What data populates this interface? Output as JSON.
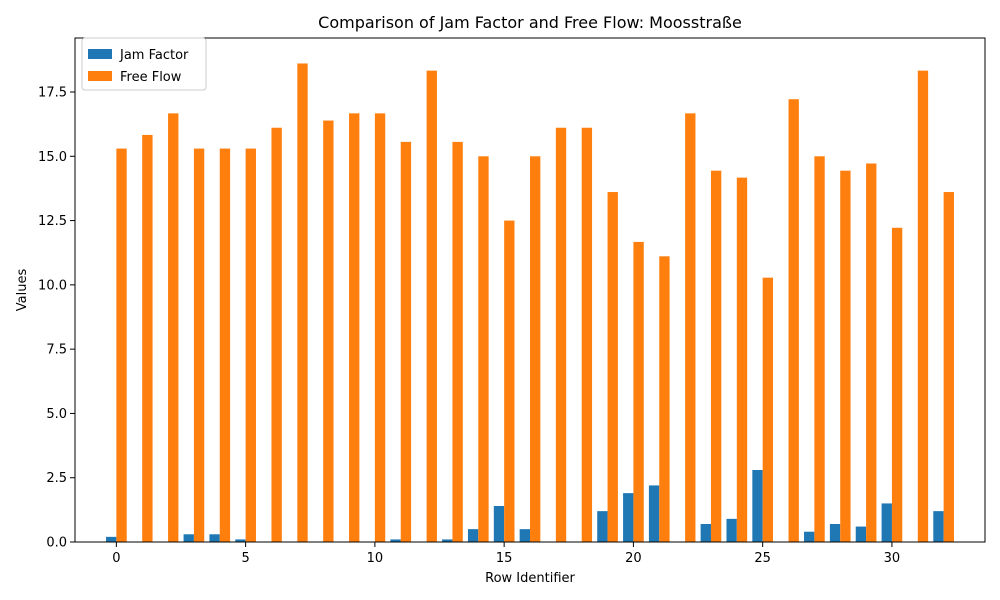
{
  "chart_data": {
    "type": "bar",
    "title": "Comparison of Jam Factor and Free Flow: Moosstraße",
    "xlabel": "Row Identifier",
    "ylabel": "Values",
    "xlim": [
      -1.6,
      33.6
    ],
    "ylim": [
      0,
      19.6
    ],
    "x": [
      0,
      1,
      2,
      3,
      4,
      5,
      6,
      7,
      8,
      9,
      10,
      11,
      12,
      13,
      14,
      15,
      16,
      17,
      18,
      19,
      20,
      21,
      22,
      23,
      24,
      25,
      26,
      27,
      28,
      29,
      30,
      31,
      32
    ],
    "xticks": [
      0,
      5,
      10,
      15,
      20,
      25,
      30
    ],
    "yticks": [
      0.0,
      2.5,
      5.0,
      7.5,
      10.0,
      12.5,
      15.0,
      17.5
    ],
    "ytick_labels": [
      "0.0",
      "2.5",
      "5.0",
      "7.5",
      "10.0",
      "12.5",
      "15.0",
      "17.5"
    ],
    "legend_position": "top-left",
    "grid": false,
    "series": [
      {
        "name": "Jam Factor",
        "color": "#1f77b4",
        "values": [
          0.2,
          0.0,
          0.0,
          0.3,
          0.3,
          0.1,
          0.0,
          0.0,
          0.0,
          0.0,
          0.0,
          0.1,
          0.0,
          0.1,
          0.5,
          1.4,
          0.5,
          0.0,
          0.0,
          1.2,
          1.9,
          2.2,
          0.0,
          0.7,
          0.9,
          2.8,
          0.0,
          0.4,
          0.7,
          0.6,
          1.5,
          0.0,
          1.2
        ]
      },
      {
        "name": "Free Flow",
        "color": "#ff7f0e",
        "values": [
          15.3,
          15.83,
          16.67,
          15.3,
          15.3,
          15.3,
          16.11,
          18.61,
          16.39,
          16.67,
          16.67,
          15.56,
          18.33,
          15.56,
          15.0,
          12.5,
          15.0,
          16.11,
          16.11,
          13.61,
          11.67,
          11.11,
          16.67,
          14.44,
          14.17,
          10.28,
          17.22,
          15.0,
          14.44,
          14.72,
          12.22,
          18.33,
          13.61
        ]
      }
    ]
  }
}
